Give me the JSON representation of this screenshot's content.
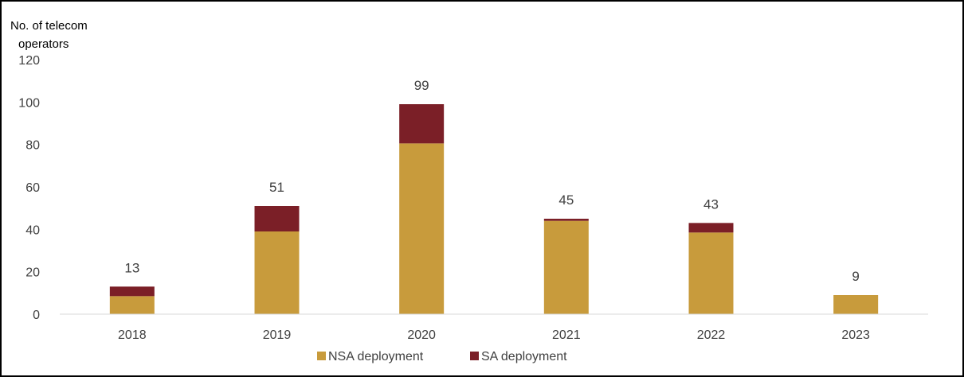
{
  "chart_data": {
    "type": "bar",
    "stacked": true,
    "ylabel_lines": [
      "No. of telecom",
      "operators"
    ],
    "categories": [
      "2018",
      "2019",
      "2020",
      "2021",
      "2022",
      "2023"
    ],
    "series": [
      {
        "name": "NSA deployment",
        "color": "#C89B3C",
        "values": [
          8.5,
          39,
          80.5,
          44,
          38.5,
          9
        ]
      },
      {
        "name": "SA deployment",
        "color": "#7B1F27",
        "values": [
          4.5,
          12,
          18.5,
          1,
          4.5,
          0
        ]
      }
    ],
    "totals": [
      "13",
      "51",
      "99",
      "45",
      "43",
      "9"
    ],
    "yticks": [
      0,
      20,
      40,
      60,
      80,
      100,
      120
    ],
    "ylim": [
      0,
      120
    ],
    "grid": false,
    "legend_position": "bottom"
  }
}
